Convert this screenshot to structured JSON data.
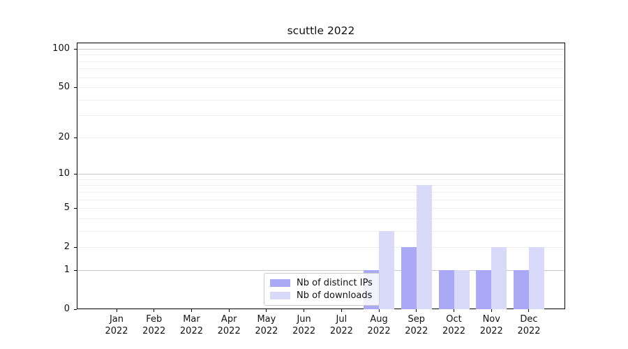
{
  "title": "scuttle 2022",
  "legend": {
    "items": [
      {
        "label": "Nb of distinct IPs",
        "color": "#a9a9f6"
      },
      {
        "label": "Nb of downloads",
        "color": "#d9d9f9"
      }
    ]
  },
  "chart_data": {
    "type": "bar",
    "title": "scuttle 2022",
    "categories": [
      "Jan 2022",
      "Feb 2022",
      "Mar 2022",
      "Apr 2022",
      "May 2022",
      "Jun 2022",
      "Jul 2022",
      "Aug 2022",
      "Sep 2022",
      "Oct 2022",
      "Nov 2022",
      "Dec 2022"
    ],
    "series": [
      {
        "name": "Nb of distinct IPs",
        "color": "#a9a9f6",
        "values": [
          0,
          0,
          0,
          0,
          0,
          0,
          0,
          1,
          2,
          1,
          1,
          1
        ]
      },
      {
        "name": "Nb of downloads",
        "color": "#d9d9f9",
        "values": [
          0,
          0,
          0,
          0,
          0,
          0,
          0,
          3,
          8,
          1,
          2,
          2
        ]
      }
    ],
    "xlabel": "",
    "ylabel": "",
    "y_scale": "log1p",
    "ylim": [
      0,
      112
    ],
    "y_tick_values": [
      0,
      1,
      2,
      5,
      10,
      20,
      50,
      100
    ],
    "y_tick_labels": [
      "0",
      "1",
      "2",
      "5",
      "10",
      "20",
      "50",
      "100"
    ],
    "gridlines_major": [
      1,
      10,
      100
    ],
    "gridlines_minor": [
      2,
      3,
      4,
      5,
      6,
      7,
      8,
      9,
      20,
      30,
      40,
      50,
      60,
      70,
      80,
      90
    ],
    "grid": true,
    "legend_position": "inside lower-center"
  }
}
